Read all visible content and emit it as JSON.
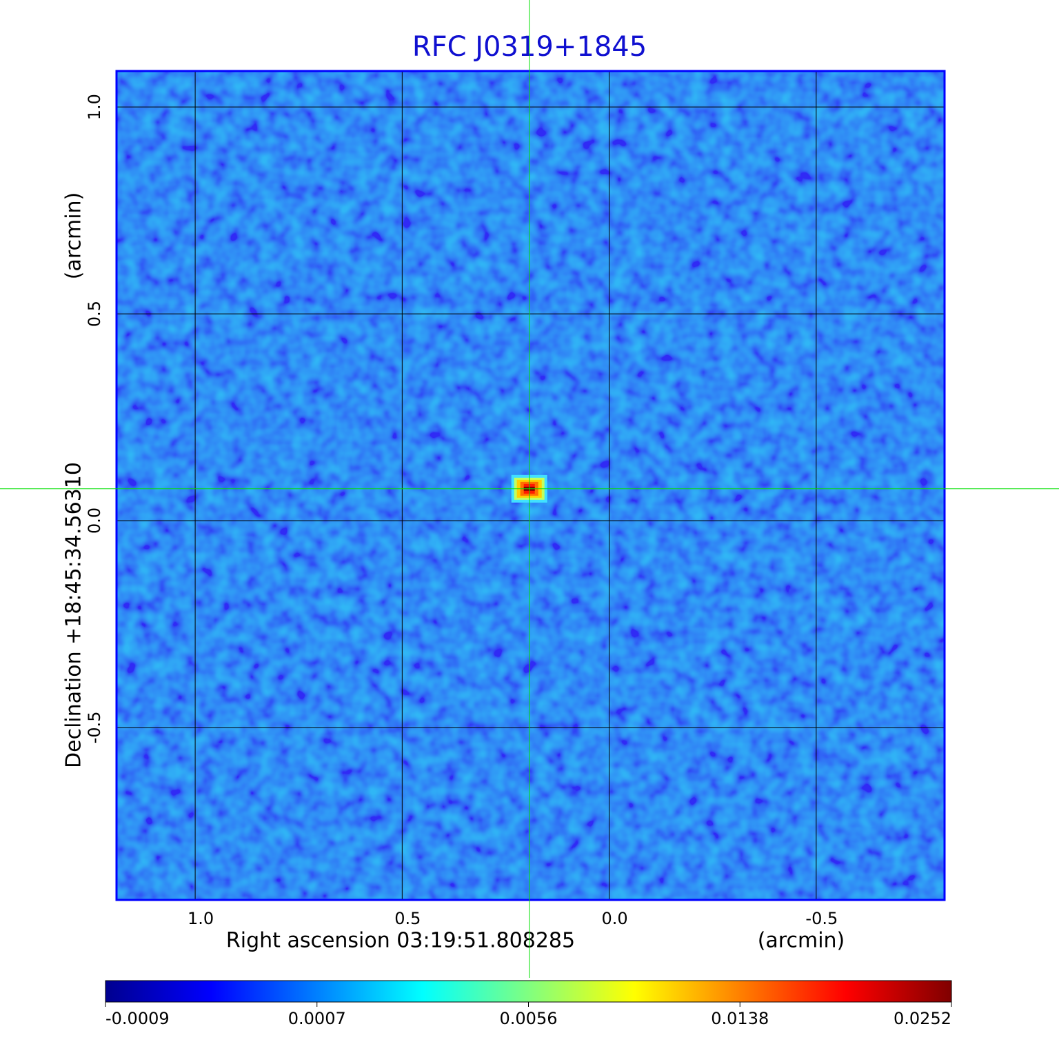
{
  "chart_data": {
    "type": "image",
    "title": "RFC J0319+1845",
    "x_label": "Right ascension  03:19:51.808285",
    "x_unit": "(arcmin)",
    "y_label": "Declination  +18:45:34.56310",
    "y_unit": "(arcmin)",
    "xlim": [
      1.19,
      -0.81
    ],
    "ylim": [
      -0.917,
      1.087
    ],
    "xticks": [
      {
        "value": 1.0,
        "label": "1.0"
      },
      0.5,
      {
        "value": 0.0,
        "label": "0.0"
      },
      -0.5
    ],
    "yticks": [
      {
        "value": 1.0,
        "label": "1.0"
      },
      0.5,
      {
        "value": 0.0,
        "label": "0.0"
      },
      -0.5
    ],
    "grid": true,
    "source": {
      "x": 0.193,
      "y": 0.077,
      "value": 0.0252
    },
    "colorbar_ticks": [
      -0.0009,
      0.0007,
      0.0056,
      0.0138,
      0.0252
    ],
    "colormap": [
      "#00008f",
      "#0000ff",
      "#0080ff",
      "#00ffff",
      "#80ff80",
      "#ffff00",
      "#ff8000",
      "#ff0000",
      "#800000"
    ]
  }
}
